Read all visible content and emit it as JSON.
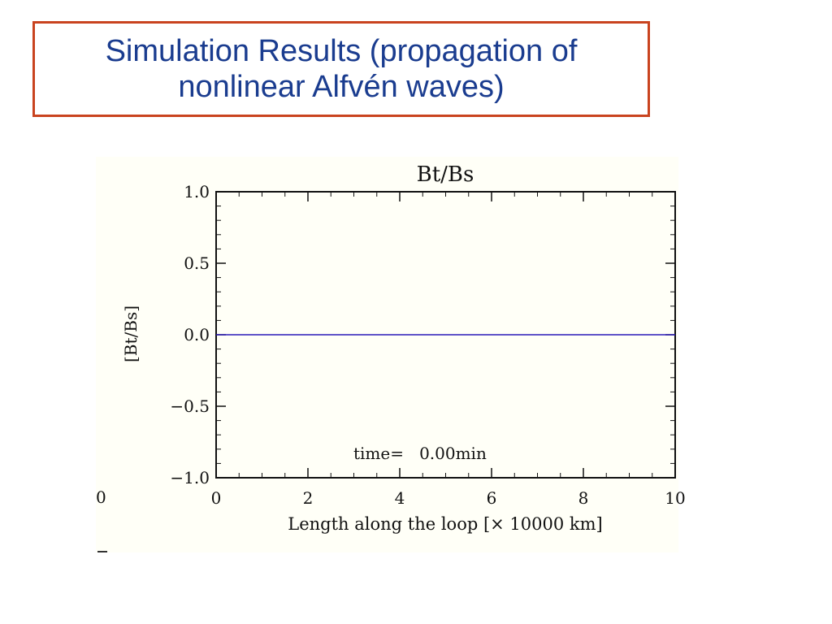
{
  "slide": {
    "title_line1": "Simulation Results (propagation of",
    "title_line2": "nonlinear Alfvén waves)"
  },
  "colors": {
    "title_text": "#1a3c8f",
    "title_border": "#c9431f",
    "series_line": "#2a1ab8",
    "plot_background": "#fffff7"
  },
  "chart_data": {
    "type": "line",
    "title": "Bt/Bs",
    "xlabel": "Length along the loop [× 10000 km]",
    "ylabel": "[Bt/Bs]",
    "xlim": [
      0,
      10
    ],
    "ylim": [
      -1.0,
      1.0
    ],
    "x_ticks": [
      0,
      2,
      4,
      6,
      8,
      10
    ],
    "x_tick_labels": [
      "0",
      "2",
      "4",
      "6",
      "8",
      "10"
    ],
    "y_ticks": [
      1.0,
      0.5,
      0.0,
      -0.5,
      -1.0
    ],
    "y_tick_labels": [
      "1.0",
      "0.5",
      "0.0",
      "−0.5",
      "−1.0"
    ],
    "series": [
      {
        "x": [
          0,
          10
        ],
        "values": [
          0.0,
          0.0
        ]
      }
    ],
    "annotation": "time=   0.00min",
    "clipped_left_label": "0",
    "grid": false
  }
}
